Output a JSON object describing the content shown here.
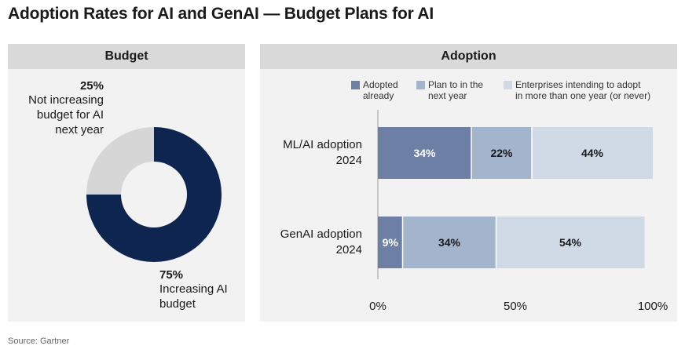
{
  "title": "Adoption Rates for AI and GenAI — Budget Plans for AI",
  "source": "Source: Gartner",
  "budget": {
    "header": "Budget",
    "slices": [
      {
        "pct_label": "75%",
        "label_lines": [
          "Increasing AI",
          "budget"
        ]
      },
      {
        "pct_label": "25%",
        "label_lines": [
          "Not increasing",
          "budget for AI",
          "next year"
        ]
      }
    ]
  },
  "adoption": {
    "header": "Adoption",
    "legend": [
      {
        "lines": [
          "Adopted",
          "already"
        ]
      },
      {
        "lines": [
          "Plan to in the",
          "next year"
        ]
      },
      {
        "lines": [
          "Enterprises intending to adopt",
          "in more than one year (or never)"
        ]
      }
    ]
  },
  "colors": {
    "navy": "#0e2550",
    "gray": "#d6d6d6",
    "series": [
      "#6d7fa4",
      "#a3b4cd",
      "#cfdae6"
    ]
  },
  "chart_data": [
    {
      "type": "pie",
      "title": "Budget",
      "categories": [
        "Increasing AI budget",
        "Not increasing budget for AI next year"
      ],
      "values": [
        75,
        25
      ]
    },
    {
      "type": "bar",
      "orientation": "horizontal",
      "stacked": true,
      "title": "Adoption",
      "categories": [
        "ML/AI adoption 2024",
        "GenAI adoption 2024"
      ],
      "category_lines": [
        [
          "ML/AI adoption",
          "2024"
        ],
        [
          "GenAI adoption",
          "2024"
        ]
      ],
      "series": [
        {
          "name": "Adopted already",
          "values": [
            34,
            9
          ],
          "labels": [
            "34%",
            "9%"
          ]
        },
        {
          "name": "Plan to in the next year",
          "values": [
            22,
            34
          ],
          "labels": [
            "22%",
            "34%"
          ]
        },
        {
          "name": "Enterprises intending to adopt in more than one year (or never)",
          "values": [
            44,
            54
          ],
          "labels": [
            "44%",
            "54%"
          ]
        }
      ],
      "xlim": [
        0,
        100
      ],
      "xticks": [
        "0%",
        "50%",
        "100%"
      ],
      "xtick_values": [
        0,
        50,
        100
      ],
      "legend_position": "top"
    }
  ]
}
